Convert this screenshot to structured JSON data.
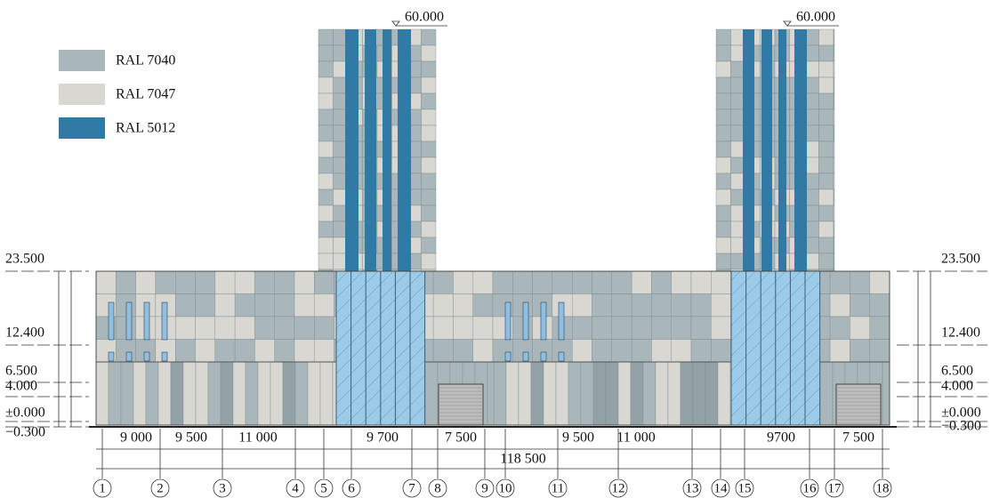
{
  "legend": [
    {
      "label": "RAL 7040",
      "color": "#a9b6ba"
    },
    {
      "label": "RAL 7047",
      "color": "#d8d7d1"
    },
    {
      "label": "RAL 5012",
      "color": "#2f7ba6"
    }
  ],
  "elevation_marks": {
    "top": [
      "60.000",
      "60.000"
    ],
    "left": [
      "23.500",
      "12.400",
      "6.500",
      "4.000",
      "±0.000",
      "−0.300"
    ],
    "right": [
      "23.500",
      "12.400",
      "6.500",
      "4.000",
      "±0.000",
      "−0.300"
    ]
  },
  "dimensions": [
    "9 000",
    "9 500",
    "11 000",
    "9 700",
    "7 500",
    "9 500",
    "11 000",
    "9700",
    "7 500"
  ],
  "overall_dimension": "118 500",
  "axes": [
    "1",
    "2",
    "3",
    "4",
    "5",
    "6",
    "7",
    "8",
    "9",
    "10",
    "11",
    "12",
    "13",
    "14",
    "15",
    "16",
    "17",
    "18"
  ]
}
